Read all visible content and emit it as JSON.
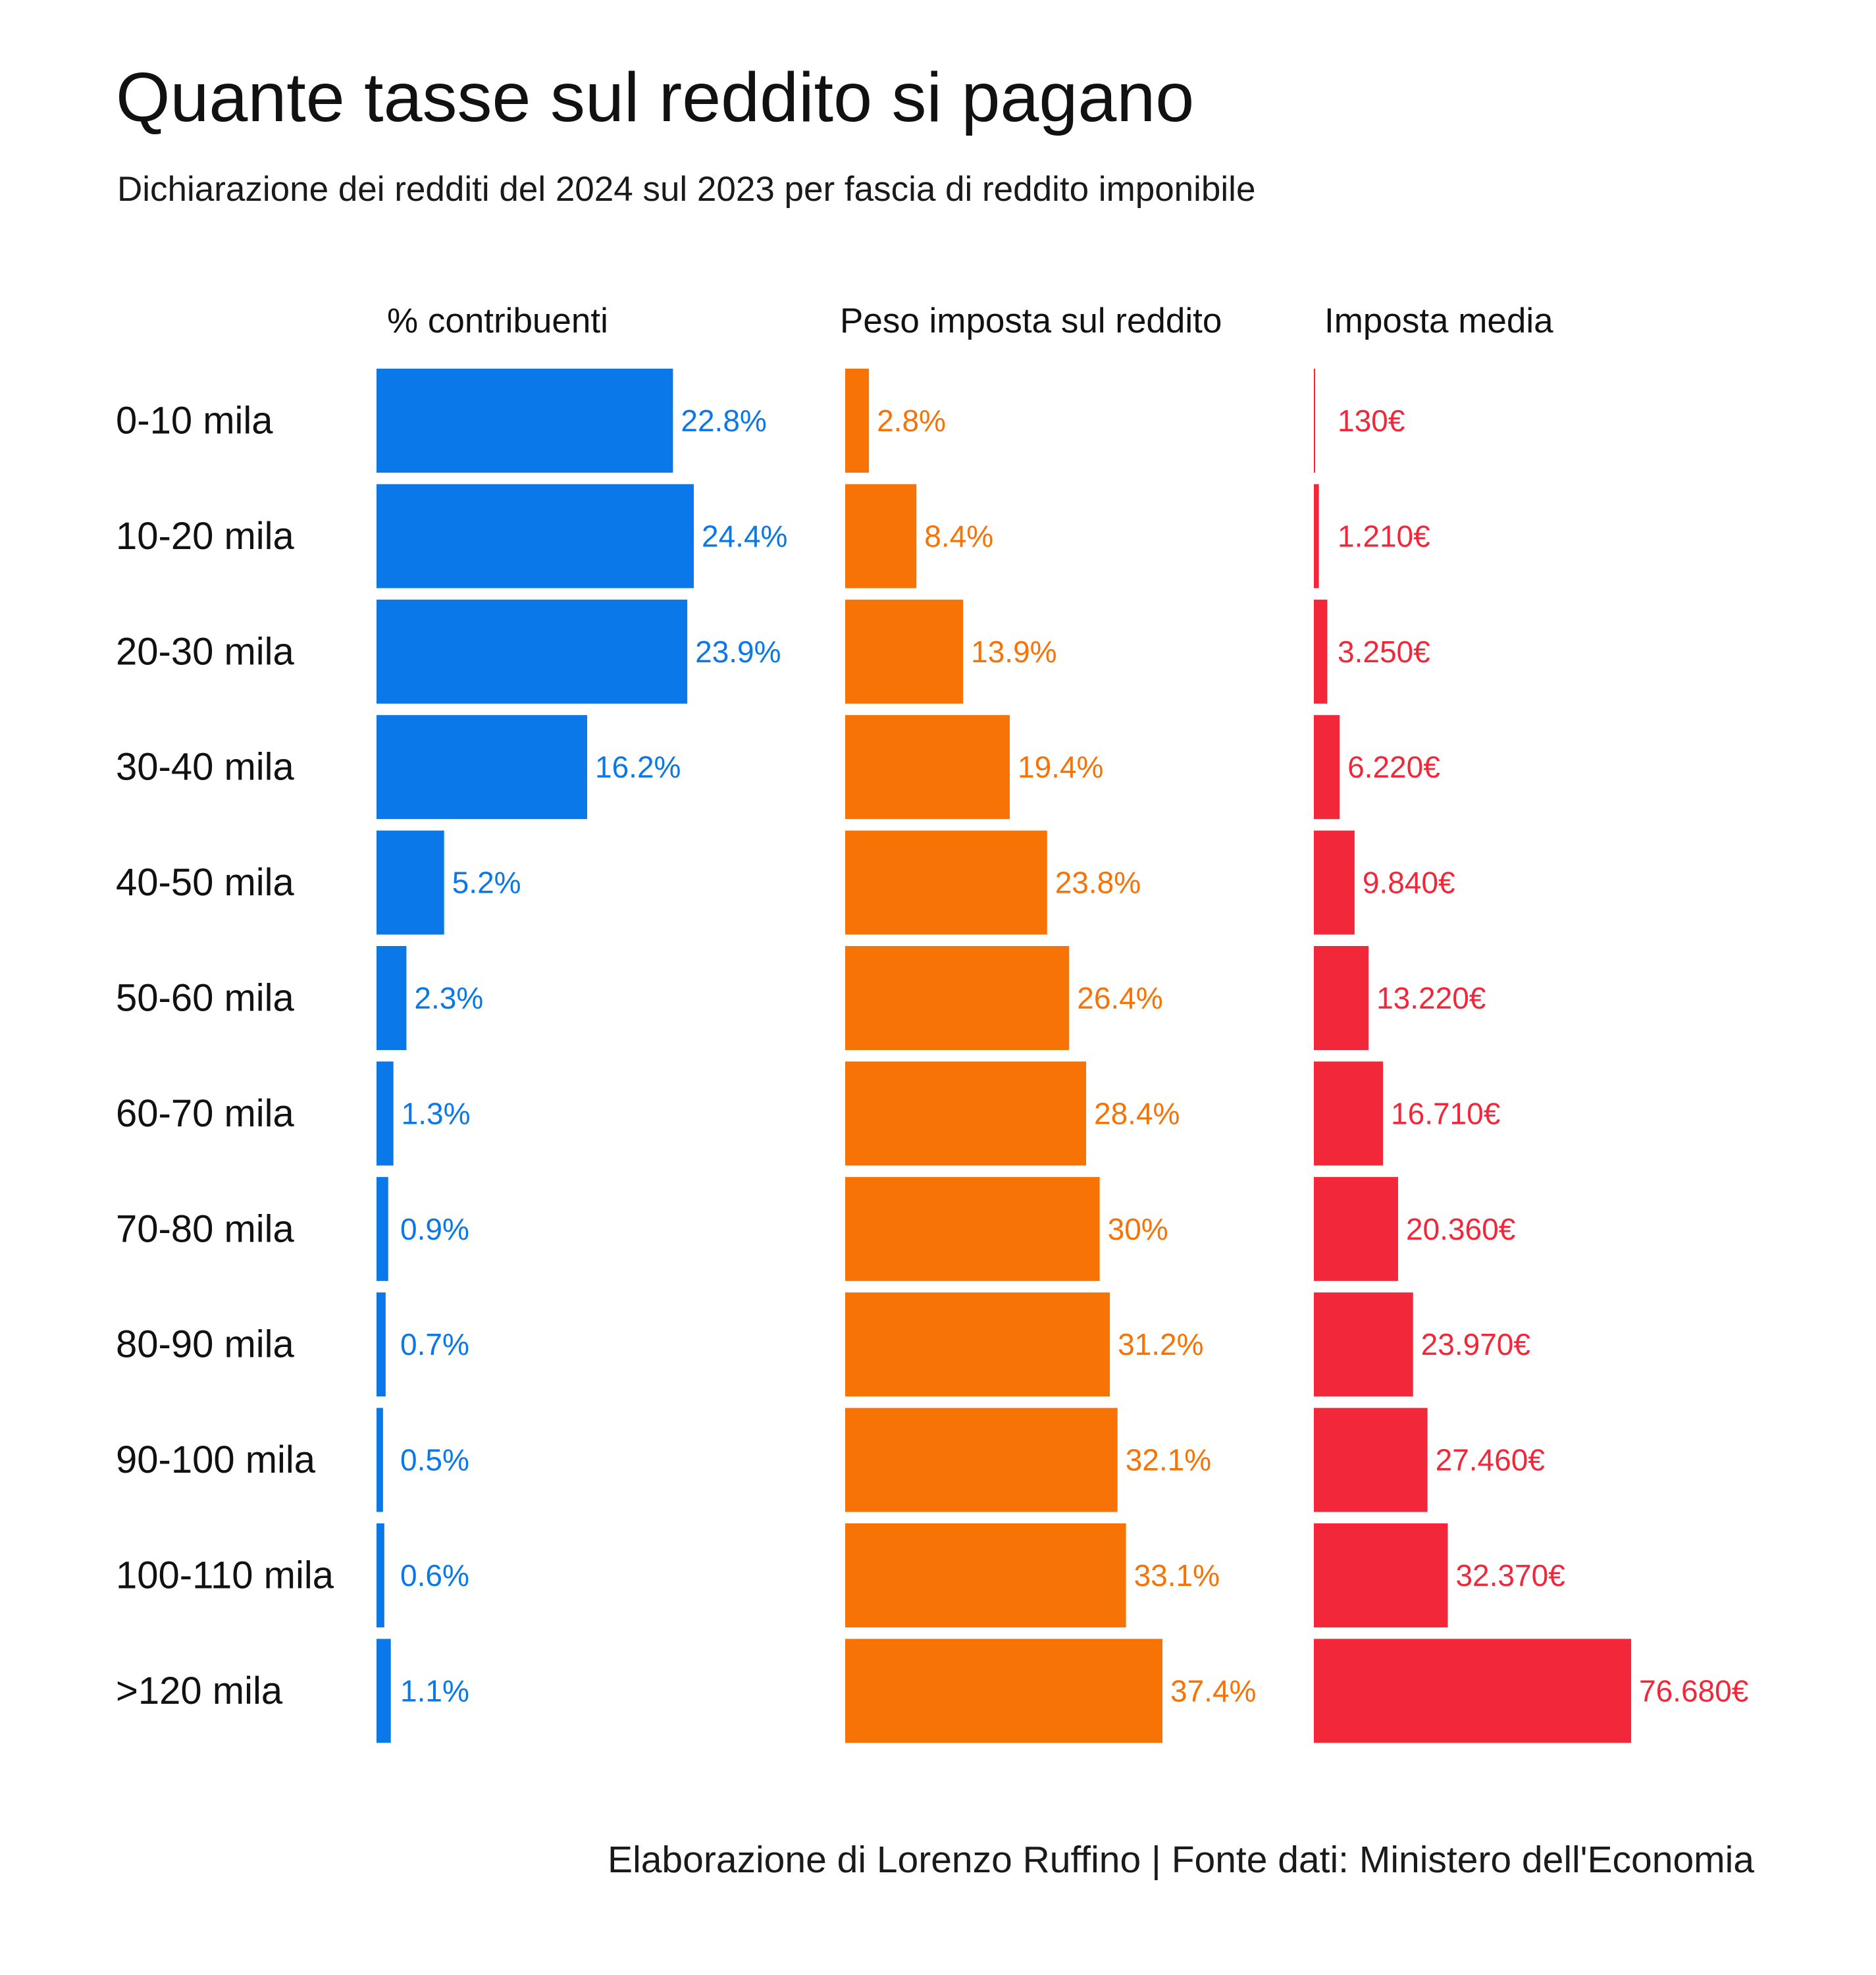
{
  "title": "Quante tasse sul reddito si pagano",
  "subtitle": "Dichiarazione dei redditi del 2024 sul 2023 per fascia di reddito imponibile",
  "source": "Elaborazione di Lorenzo Ruffino | Fonte dati: Ministero dell'Economia",
  "chart_data": {
    "type": "bar",
    "orientation": "horizontal",
    "categories": [
      "0-10 mila",
      "10-20 mila",
      "20-30 mila",
      "30-40 mila",
      "40-50 mila",
      "50-60 mila",
      "60-70 mila",
      "70-80 mila",
      "80-90 mila",
      "90-100 mila",
      "100-110 mila",
      ">120 mila"
    ],
    "panels": [
      {
        "title": "% contribuenti",
        "color": "#0a78e8",
        "max": 24.4,
        "values": [
          22.8,
          24.4,
          23.9,
          16.2,
          5.2,
          2.3,
          1.3,
          0.9,
          0.7,
          0.5,
          0.6,
          1.1
        ],
        "labels": [
          "22.8%",
          "24.4%",
          "23.9%",
          "16.2%",
          "5.2%",
          "2.3%",
          "1.3%",
          "0.9%",
          "0.7%",
          "0.5%",
          "0.6%",
          "1.1%"
        ]
      },
      {
        "title": "Peso imposta sul reddito",
        "color": "#f87306",
        "max": 37.4,
        "values": [
          2.8,
          8.4,
          13.9,
          19.4,
          23.8,
          26.4,
          28.4,
          30,
          31.2,
          32.1,
          33.1,
          37.4
        ],
        "labels": [
          "2.8%",
          "8.4%",
          "13.9%",
          "19.4%",
          "23.8%",
          "26.4%",
          "28.4%",
          "30%",
          "31.2%",
          "32.1%",
          "33.1%",
          "37.4%"
        ]
      },
      {
        "title": "Imposta media",
        "color": "#f2283a",
        "max": 76680,
        "values": [
          130,
          1210,
          3250,
          6220,
          9840,
          13220,
          16710,
          20360,
          23970,
          27460,
          32370,
          76680
        ],
        "labels": [
          "130€",
          "1.210€",
          "3.250€",
          "6.220€",
          "9.840€",
          "13.220€",
          "16.710€",
          "20.360€",
          "23.970€",
          "27.460€",
          "32.370€",
          "76.680€"
        ]
      }
    ]
  }
}
